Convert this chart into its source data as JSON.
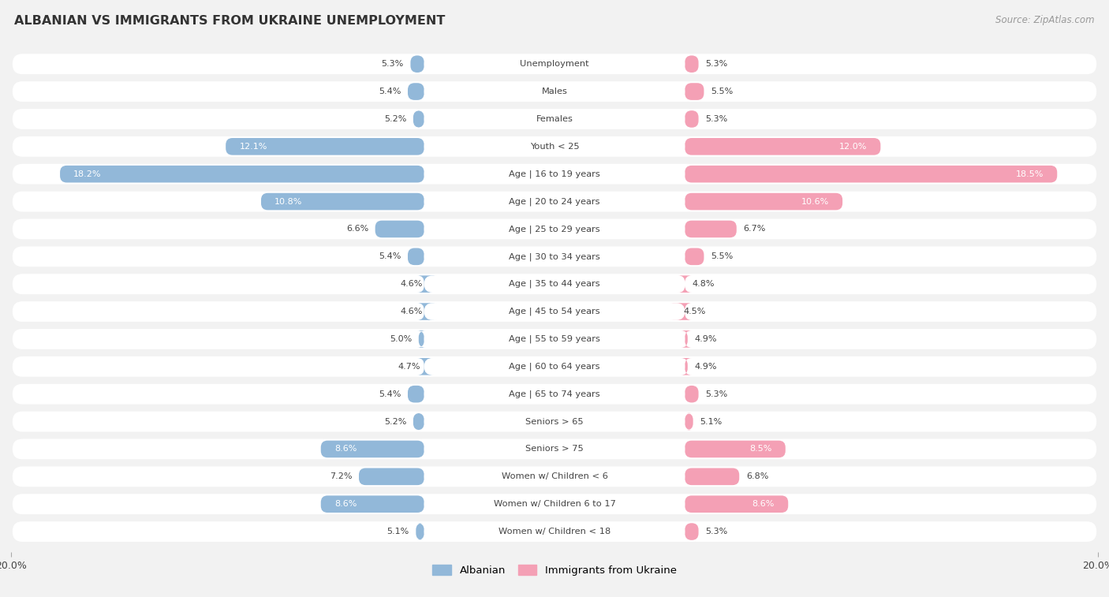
{
  "title": "ALBANIAN VS IMMIGRANTS FROM UKRAINE UNEMPLOYMENT",
  "source": "Source: ZipAtlas.com",
  "categories": [
    "Unemployment",
    "Males",
    "Females",
    "Youth < 25",
    "Age | 16 to 19 years",
    "Age | 20 to 24 years",
    "Age | 25 to 29 years",
    "Age | 30 to 34 years",
    "Age | 35 to 44 years",
    "Age | 45 to 54 years",
    "Age | 55 to 59 years",
    "Age | 60 to 64 years",
    "Age | 65 to 74 years",
    "Seniors > 65",
    "Seniors > 75",
    "Women w/ Children < 6",
    "Women w/ Children 6 to 17",
    "Women w/ Children < 18"
  ],
  "albanian": [
    5.3,
    5.4,
    5.2,
    12.1,
    18.2,
    10.8,
    6.6,
    5.4,
    4.6,
    4.6,
    5.0,
    4.7,
    5.4,
    5.2,
    8.6,
    7.2,
    8.6,
    5.1
  ],
  "ukraine": [
    5.3,
    5.5,
    5.3,
    12.0,
    18.5,
    10.6,
    6.7,
    5.5,
    4.8,
    4.5,
    4.9,
    4.9,
    5.3,
    5.1,
    8.5,
    6.8,
    8.6,
    5.3
  ],
  "albanian_color": "#92b8d9",
  "ukraine_color": "#f4a0b5",
  "background_color": "#f2f2f2",
  "row_bg_color": "#ffffff",
  "text_color": "#444444",
  "xlim": 20.0,
  "bar_height": 0.62,
  "label_threshold": 8.0
}
